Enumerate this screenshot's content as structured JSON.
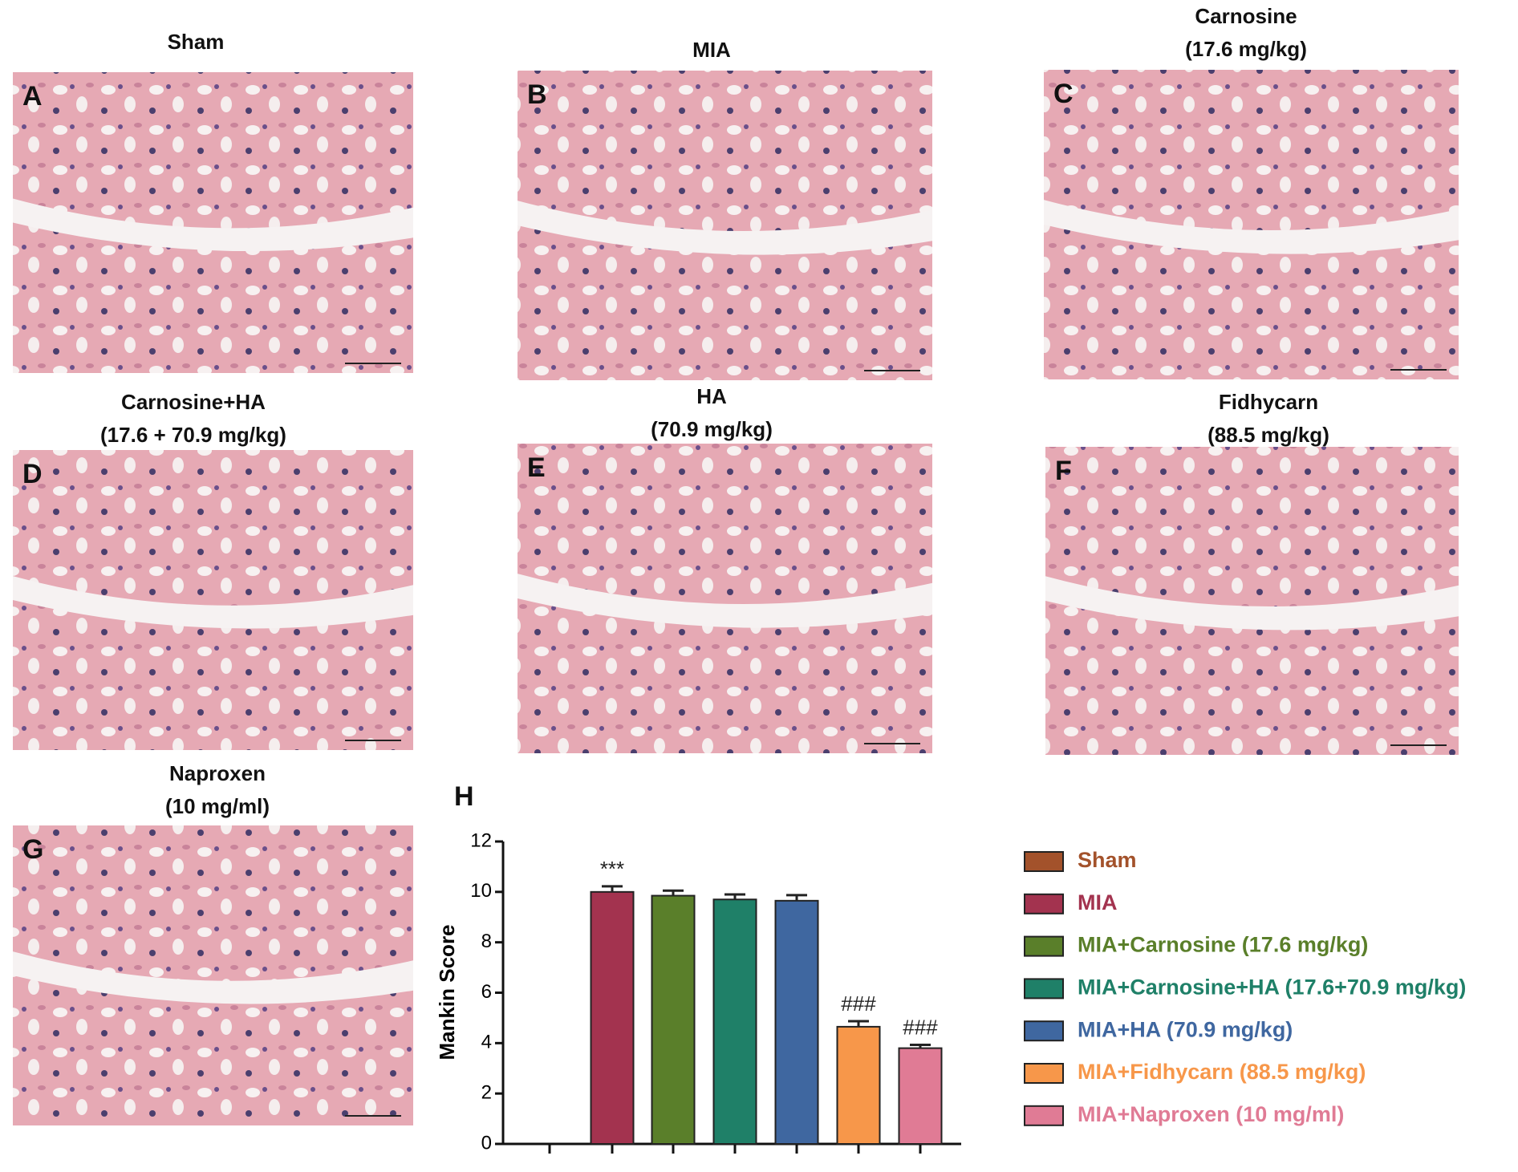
{
  "panels": [
    {
      "letter": "A",
      "title": [
        "Sham"
      ]
    },
    {
      "letter": "B",
      "title": [
        "MIA"
      ]
    },
    {
      "letter": "C",
      "title": [
        "Carnosine",
        "(17.6 mg/kg)"
      ]
    },
    {
      "letter": "D",
      "title": [
        "Carnosine+HA",
        "(17.6 + 70.9 mg/kg)"
      ]
    },
    {
      "letter": "E",
      "title": [
        "HA",
        "(70.9 mg/kg)"
      ]
    },
    {
      "letter": "F",
      "title": [
        "Fidhycarn",
        "(88.5 mg/kg)"
      ]
    },
    {
      "letter": "G",
      "title": [
        "Naproxen",
        "(10 mg/ml)"
      ]
    }
  ],
  "chart_data": {
    "type": "bar",
    "panel_letter": "H",
    "y_label": "Mankin Score",
    "categories": [
      "Sham",
      "MIA",
      "MIA+Carnosine (17.6 mg/kg)",
      "MIA+Carnosine+HA (17.6+70.9 mg/kg)",
      "MIA+HA (70.9 mg/kg)",
      "MIA+Fidhycarn (88.5 mg/kg)",
      "MIA+Naproxen (10 mg/ml)"
    ],
    "values": [
      0,
      10.0,
      9.85,
      9.7,
      9.65,
      4.65,
      3.8
    ],
    "errors": [
      0,
      0.22,
      0.2,
      0.2,
      0.22,
      0.22,
      0.13
    ],
    "colors": [
      "#a3522b",
      "#a3334f",
      "#5a7f2a",
      "#1f8068",
      "#3f67a0",
      "#f7974a",
      "#e07b95"
    ],
    "annotations": [
      null,
      "***",
      null,
      null,
      null,
      "###",
      "###"
    ],
    "ylim": [
      0,
      12
    ],
    "yticks": [
      0,
      2,
      4,
      6,
      8,
      10,
      12
    ]
  }
}
